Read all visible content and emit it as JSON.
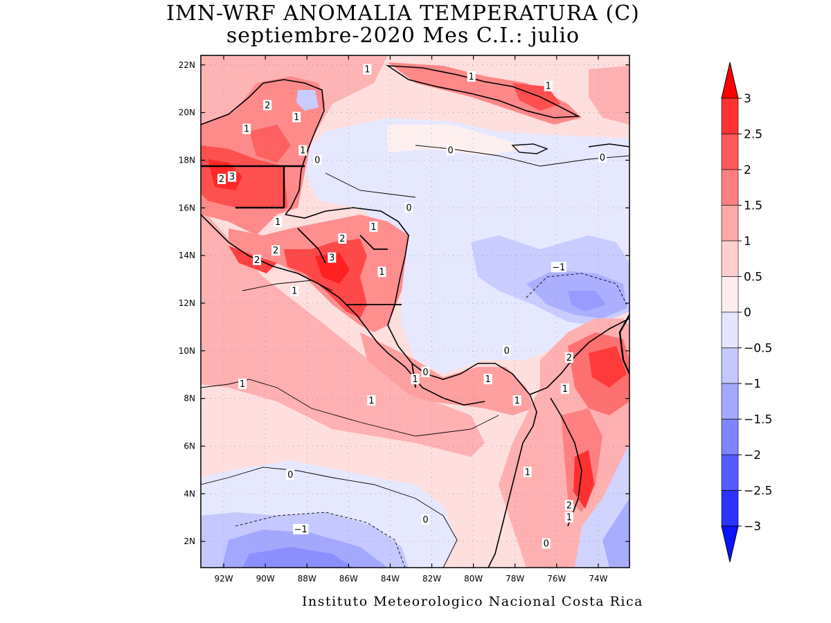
{
  "title": "IMN-WRF  ANOMALIA TEMPERATURA (C)",
  "subtitle": "septiembre-2020 Mes C.I.: julio",
  "credit": "Instituto Meteorologico Nacional Costa Rica",
  "axes": {
    "lat_ticks": [
      "22N",
      "20N",
      "18N",
      "16N",
      "14N",
      "12N",
      "10N",
      "8N",
      "6N",
      "4N",
      "2N"
    ],
    "lon_ticks": [
      "92W",
      "90W",
      "88W",
      "86W",
      "84W",
      "82W",
      "80W",
      "78W",
      "76W",
      "74W"
    ]
  },
  "colorbar": {
    "levels": [
      "3",
      "2.5",
      "2",
      "1.5",
      "1",
      "0.5",
      "0",
      "−0.5",
      "−1",
      "−1.5",
      "−2",
      "−2.5",
      "−3"
    ],
    "colors": [
      "#ff0000",
      "#ff3333",
      "#ff5a5a",
      "#ff8080",
      "#ffa8a8",
      "#ffcfcf",
      "#ffeded",
      "#e4e6ff",
      "#c4c8ff",
      "#a3a8ff",
      "#7f85ff",
      "#555cff",
      "#2a33ff",
      "#0a14ff"
    ]
  },
  "contour_labels": [
    {
      "text": "1",
      "lon": -85.1,
      "lat": 21.8
    },
    {
      "text": "1",
      "lon": -80.1,
      "lat": 21.5
    },
    {
      "text": "1",
      "lon": -76.4,
      "lat": 21.1
    },
    {
      "text": "2",
      "lon": -89.9,
      "lat": 20.3
    },
    {
      "text": "1",
      "lon": -88.5,
      "lat": 19.8
    },
    {
      "text": "1",
      "lon": -90.9,
      "lat": 19.3
    },
    {
      "text": "1",
      "lon": -88.2,
      "lat": 18.4
    },
    {
      "text": "0",
      "lon": -87.5,
      "lat": 18.0
    },
    {
      "text": "0",
      "lon": -81.1,
      "lat": 18.4
    },
    {
      "text": "0",
      "lon": -73.8,
      "lat": 18.1
    },
    {
      "text": "2",
      "lon": -92.1,
      "lat": 17.2
    },
    {
      "text": "3",
      "lon": -91.6,
      "lat": 17.3
    },
    {
      "text": "0",
      "lon": -83.1,
      "lat": 16.0
    },
    {
      "text": "1",
      "lon": -89.4,
      "lat": 15.4
    },
    {
      "text": "1",
      "lon": -84.8,
      "lat": 15.2
    },
    {
      "text": "2",
      "lon": -86.3,
      "lat": 14.7
    },
    {
      "text": "2",
      "lon": -89.5,
      "lat": 14.2
    },
    {
      "text": "3",
      "lon": -86.8,
      "lat": 13.9
    },
    {
      "text": "2",
      "lon": -90.4,
      "lat": 13.8
    },
    {
      "text": "−1",
      "lon": -75.9,
      "lat": 13.5
    },
    {
      "text": "1",
      "lon": -84.4,
      "lat": 13.3
    },
    {
      "text": "1",
      "lon": -88.6,
      "lat": 12.5
    },
    {
      "text": "0",
      "lon": -78.4,
      "lat": 10.0
    },
    {
      "text": "2",
      "lon": -75.4,
      "lat": 9.7
    },
    {
      "text": "0",
      "lon": -82.3,
      "lat": 9.1
    },
    {
      "text": "1",
      "lon": -82.8,
      "lat": 8.8
    },
    {
      "text": "1",
      "lon": -79.3,
      "lat": 8.8
    },
    {
      "text": "1",
      "lon": -91.1,
      "lat": 8.6
    },
    {
      "text": "1",
      "lon": -75.6,
      "lat": 8.4
    },
    {
      "text": "1",
      "lon": -84.9,
      "lat": 7.9
    },
    {
      "text": "1",
      "lon": -77.9,
      "lat": 7.9
    },
    {
      "text": "1",
      "lon": -77.4,
      "lat": 4.9
    },
    {
      "text": "0",
      "lon": -88.8,
      "lat": 4.8
    },
    {
      "text": "2",
      "lon": -75.4,
      "lat": 3.5
    },
    {
      "text": "1",
      "lon": -75.4,
      "lat": 3.0
    },
    {
      "text": "0",
      "lon": -82.3,
      "lat": 2.9
    },
    {
      "text": "−1",
      "lon": -88.3,
      "lat": 2.5
    },
    {
      "text": "0",
      "lon": -76.5,
      "lat": 1.9
    }
  ]
}
